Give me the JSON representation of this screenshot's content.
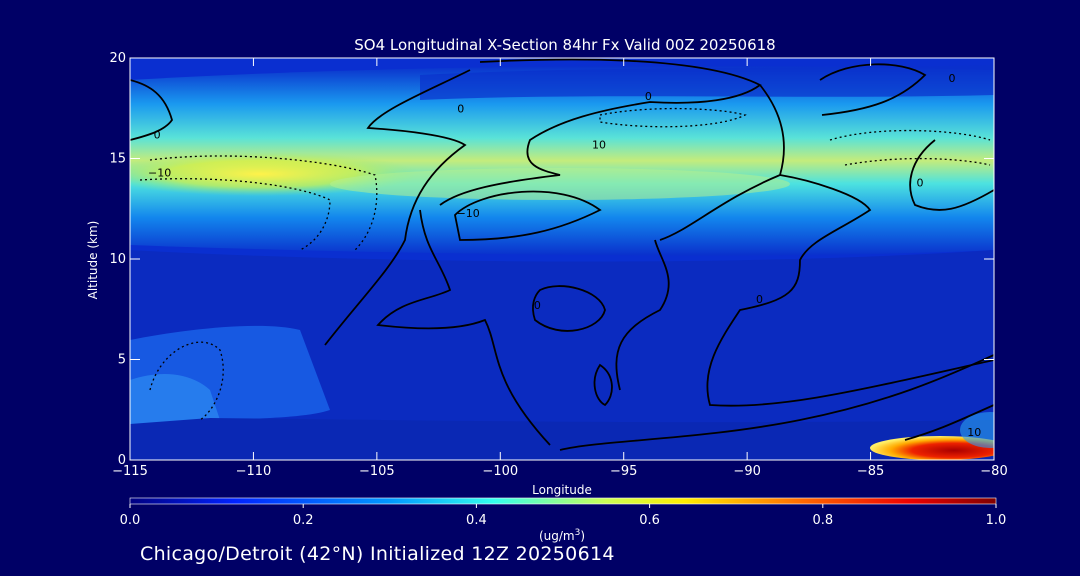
{
  "chart_data": {
    "type": "heatmap",
    "title": "SO4 Longitudinal X-Section 84hr  Fx Valid 00Z 20250618",
    "xlabel": "Longitude",
    "ylabel": "Altitude (km)",
    "xlim": [
      -115,
      -80
    ],
    "ylim": [
      0,
      20
    ],
    "x_ticks": [
      -115,
      -110,
      -105,
      -100,
      -95,
      -90,
      -85,
      -80
    ],
    "x_tick_labels": [
      "−115",
      "−110",
      "−105",
      "−100",
      "−95",
      "−90",
      "−85",
      "−80"
    ],
    "y_ticks": [
      0,
      5,
      10,
      15,
      20
    ],
    "y_tick_labels": [
      "0",
      "5",
      "10",
      "15",
      "20"
    ],
    "colorbar": {
      "min": 0.0,
      "max": 1.0,
      "ticks": [
        0.0,
        0.2,
        0.4,
        0.6,
        0.8,
        1.0
      ],
      "tick_labels": [
        "0.0",
        "0.2",
        "0.4",
        "0.6",
        "0.8",
        "1.0"
      ],
      "units_base": "(ug/m",
      "units_sup": "3",
      "units_close": ")"
    },
    "field_features": [
      {
        "name": "upper-band",
        "lon_range": [
          -115,
          -80
        ],
        "alt_center": 14.3,
        "peak_value": 0.62,
        "peak_lon": -110
      },
      {
        "name": "surface-max",
        "lon": -81.5,
        "alt": 0.4,
        "value": 1.0
      }
    ],
    "contour_labels": [
      {
        "text": "0",
        "lon": -113.9,
        "alt": 16.2
      },
      {
        "text": "−10",
        "lon": -113.8,
        "alt": 14.3
      },
      {
        "text": "0",
        "lon": -101.6,
        "alt": 17.5
      },
      {
        "text": "−10",
        "lon": -101.3,
        "alt": 12.3
      },
      {
        "text": "0",
        "lon": -94.0,
        "alt": 18.1
      },
      {
        "text": "10",
        "lon": -96.0,
        "alt": 15.7
      },
      {
        "text": "0",
        "lon": -83.0,
        "alt": 13.8
      },
      {
        "text": "0",
        "lon": -81.7,
        "alt": 19.0
      },
      {
        "text": "0",
        "lon": -89.5,
        "alt": 8.0
      },
      {
        "text": "0",
        "lon": -98.5,
        "alt": 7.7
      },
      {
        "text": "10",
        "lon": -80.8,
        "alt": 1.4
      }
    ]
  },
  "footer_text": "Chicago/Detroit (42°N) Initialized 12Z 20250614"
}
